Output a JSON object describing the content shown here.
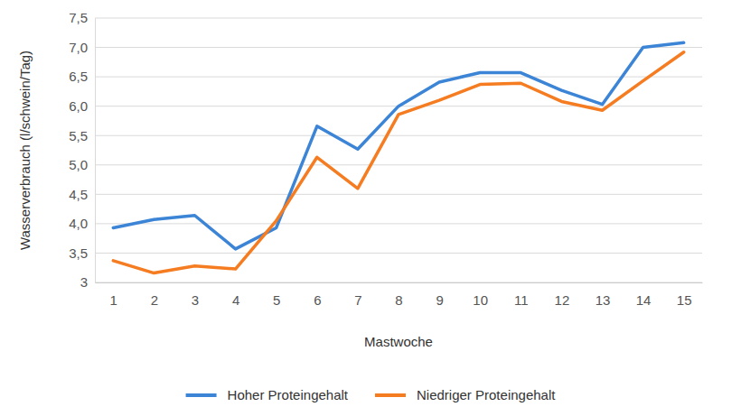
{
  "chart_data": {
    "type": "line",
    "x_label": "Mastwoche",
    "y_label": "Wasserverbrauch (l/schwein/Tag)",
    "categories": [
      "1",
      "2",
      "3",
      "4",
      "5",
      "6",
      "7",
      "8",
      "9",
      "10",
      "11",
      "12",
      "13",
      "14",
      "15"
    ],
    "series": [
      {
        "name": "Hoher Proteingehalt",
        "color": "#3b84d6",
        "values": [
          3.93,
          4.07,
          4.14,
          3.57,
          3.93,
          5.66,
          5.27,
          6.0,
          6.41,
          6.57,
          6.57,
          6.27,
          6.03,
          7.0,
          7.08
        ]
      },
      {
        "name": "Niedriger Proteingehalt",
        "color": "#f57c20",
        "values": [
          3.37,
          3.16,
          3.28,
          3.23,
          4.05,
          5.13,
          4.6,
          5.86,
          6.1,
          6.37,
          6.39,
          6.08,
          5.93,
          6.43,
          6.92
        ]
      }
    ],
    "ylim": [
      3,
      7.5
    ],
    "yticks": [
      3,
      {
        "value": 3.5,
        "label": "3,5"
      },
      {
        "value": 4,
        "label": "4,0"
      },
      {
        "value": 4.5,
        "label": "4,5"
      },
      {
        "value": 5,
        "label": "5,0"
      },
      {
        "value": 5.5,
        "label": "5,5"
      },
      {
        "value": 6,
        "label": "6,0"
      },
      {
        "value": 6.5,
        "label": "6,5"
      },
      {
        "value": 7,
        "label": "7,0"
      },
      {
        "value": 7.5,
        "label": "7,5"
      }
    ],
    "grid": true,
    "legend": "bottom"
  }
}
